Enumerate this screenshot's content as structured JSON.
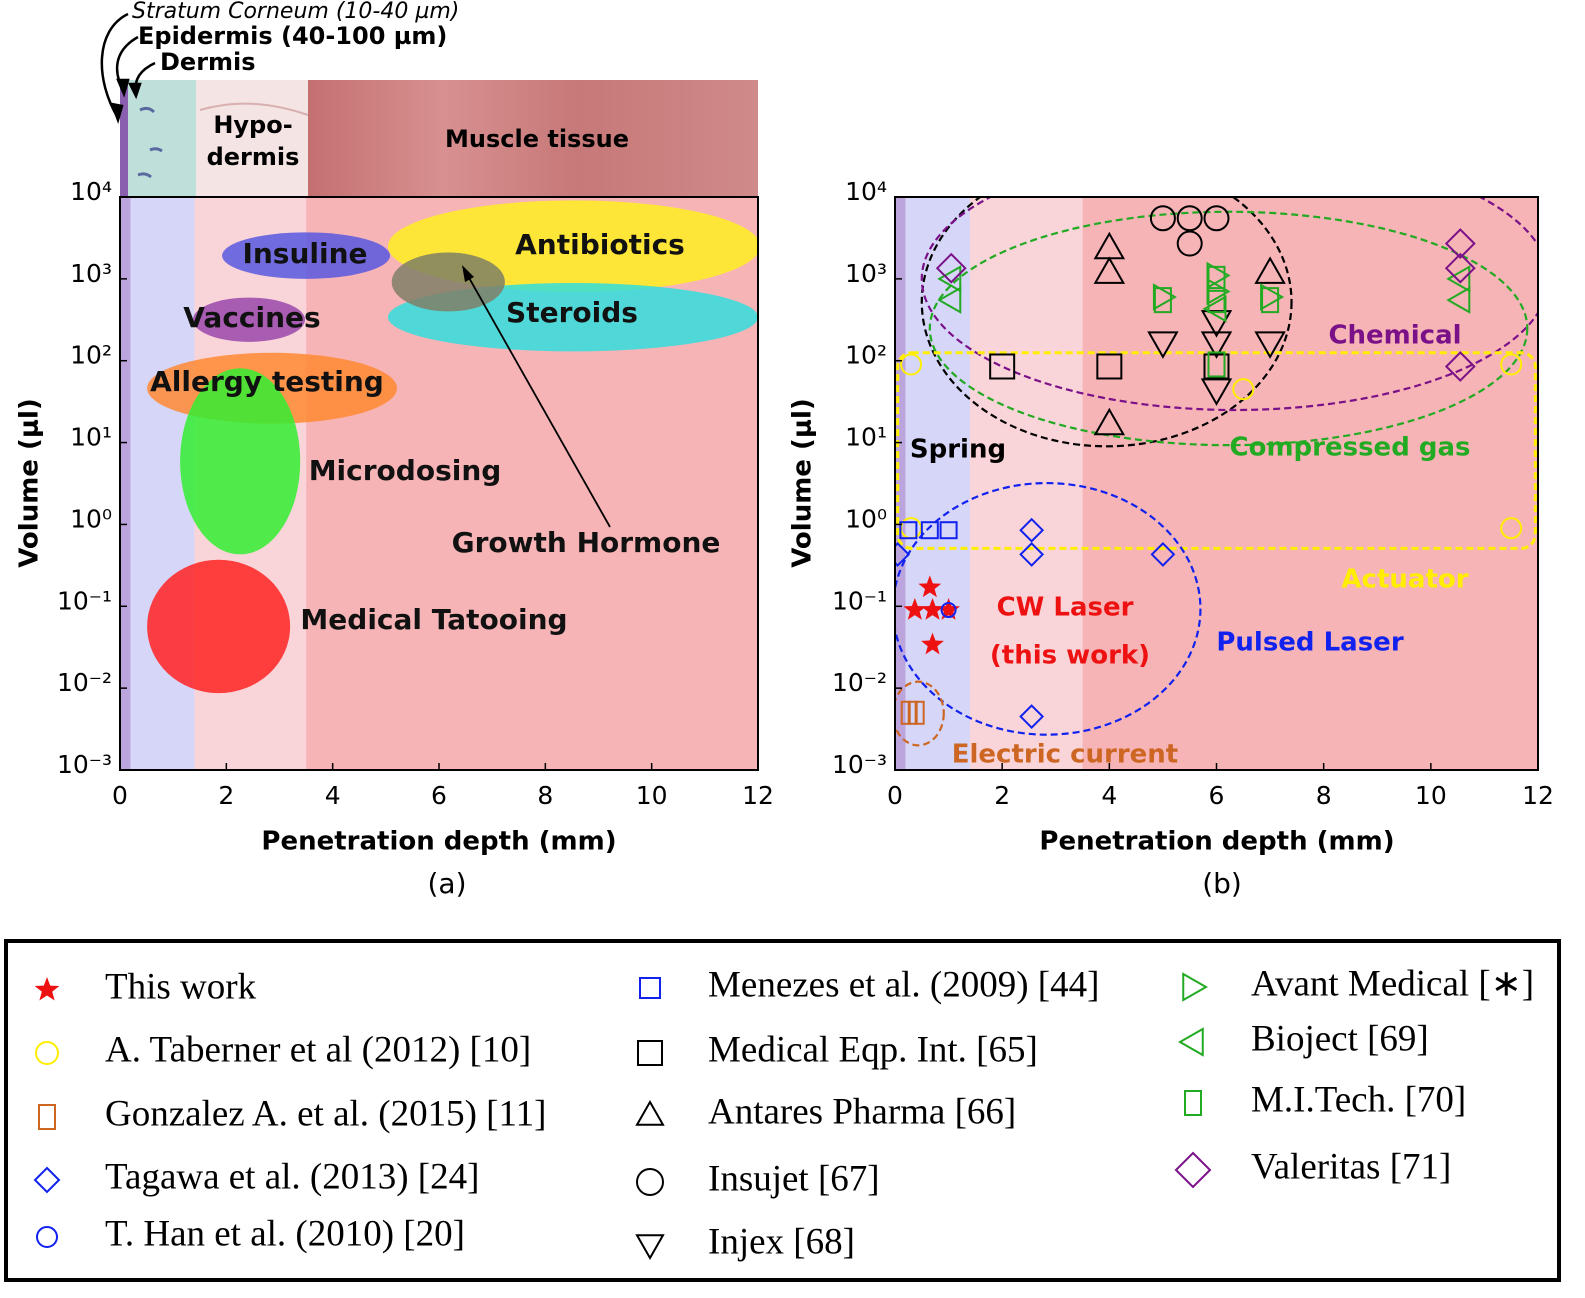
{
  "chart_data": [
    {
      "type": "region",
      "caption": "(a)",
      "xlabel": "Penetration depth (mm)",
      "ylabel": "Volume (μl)",
      "xlim": [
        0,
        12
      ],
      "xticks": [
        0,
        2,
        4,
        6,
        8,
        10,
        12
      ],
      "ylim": [
        0.001,
        10000
      ],
      "yscale": "log",
      "yticks": [
        {
          "value": 0.001,
          "label": "10⁻³"
        },
        {
          "value": 0.01,
          "label": "10⁻²"
        },
        {
          "value": 0.1,
          "label": "10⁻¹"
        },
        {
          "value": 1,
          "label": "10⁰"
        },
        {
          "value": 10,
          "label": "10¹"
        },
        {
          "value": 100,
          "label": "10²"
        },
        {
          "value": 1000,
          "label": "10³"
        },
        {
          "value": 10000,
          "label": "10⁴"
        }
      ],
      "annotations": [
        "Stratum Corneum (10-40 µm)",
        "Epidermis (40-100 µm)",
        "Dermis",
        "Hypo-",
        "dermis",
        "Muscle tissue"
      ],
      "layers": [
        {
          "xlim": [
            0,
            0.2
          ],
          "color": "#bca4dc"
        },
        {
          "xlim": [
            0.2,
            1.4
          ],
          "color": "#d6d6f8"
        },
        {
          "xlim": [
            1.4,
            3.5
          ],
          "color": "#f9d4d8"
        },
        {
          "xlim": [
            3.5,
            12
          ],
          "color": "#f7b4b6"
        }
      ],
      "regions": [
        {
          "name": "Antibiotics",
          "color": "#ffee22",
          "xlim": [
            5.04,
            12.04
          ],
          "ylim": [
            690,
            9100
          ]
        },
        {
          "name": "Steroids",
          "color": "#33dddd",
          "xlim": [
            5.04,
            12
          ],
          "ylim": [
            130,
            890
          ]
        },
        {
          "name": "Growth Hormone",
          "color": "#7f7f66",
          "xlim": [
            5.11,
            7.24
          ],
          "ylim": [
            400,
            2100
          ]
        },
        {
          "name": "Insuline",
          "color": "#5858e0",
          "xlim": [
            1.92,
            5.08
          ],
          "ylim": [
            1000,
            3700
          ]
        },
        {
          "name": "Vaccines",
          "color": "#9a48ac",
          "xlim": [
            1.37,
            3.48
          ],
          "ylim": [
            170,
            590
          ]
        },
        {
          "name": "Allergy testing",
          "color": "#ff8a33",
          "xlim": [
            0.51,
            5.21
          ],
          "ylim": [
            17,
            125
          ]
        },
        {
          "name": "Microdosing",
          "color": "#33ee33",
          "xlim": [
            1.13,
            3.39
          ],
          "ylim": [
            0.43,
            81
          ]
        },
        {
          "name": "Medical Tatooing",
          "color": "#ff2222",
          "xlim": [
            0.51,
            3.2
          ],
          "ylim": [
            0.0087,
            0.37
          ]
        }
      ]
    },
    {
      "type": "scatter",
      "caption": "(b)",
      "xlabel": "Penetration depth (mm)",
      "ylabel": "Volume (μl)",
      "xlim": [
        0,
        12
      ],
      "xticks": [
        0,
        2,
        4,
        6,
        8,
        10,
        12
      ],
      "ylim": [
        0.001,
        10000
      ],
      "yscale": "log",
      "yticks": [
        {
          "value": 0.001,
          "label": "10⁻³"
        },
        {
          "value": 0.01,
          "label": "10⁻²"
        },
        {
          "value": 0.1,
          "label": "10⁻¹"
        },
        {
          "value": 1,
          "label": "10⁰"
        },
        {
          "value": 10,
          "label": "10¹"
        },
        {
          "value": 100,
          "label": "10²"
        },
        {
          "value": 1000,
          "label": "10³"
        },
        {
          "value": 10000,
          "label": "10⁴"
        }
      ],
      "legend": "below",
      "annotations": [
        "CW Laser",
        "(this work)"
      ],
      "layers": [
        {
          "xlim": [
            0,
            0.2
          ],
          "color": "#bca4dc"
        },
        {
          "xlim": [
            0.2,
            1.4
          ],
          "color": "#d6d6f8"
        },
        {
          "xlim": [
            1.4,
            3.5
          ],
          "color": "#f9d4d8"
        },
        {
          "xlim": [
            3.5,
            12
          ],
          "color": "#f7b4b6"
        }
      ],
      "groups": [
        {
          "name": "Spring",
          "color": "#000000",
          "shape": "ellipse",
          "xlim": [
            0.5,
            7.4
          ],
          "ylim": [
            9,
            30000
          ]
        },
        {
          "name": "Chemical",
          "color": "#7a1188",
          "shape": "ellipse",
          "xlim": [
            0.5,
            12.2
          ],
          "ylim": [
            25,
            40000
          ]
        },
        {
          "name": "Compressed gas",
          "color": "#22aa22",
          "shape": "ellipse",
          "xlim": [
            0.65,
            11.8
          ],
          "ylim": [
            9.3,
            6600
          ]
        },
        {
          "name": "Actuator",
          "color": "#ffee00",
          "shape": "rounded-rect",
          "xlim": [
            0.05,
            11.95
          ],
          "ylim": [
            0.51,
            125
          ]
        },
        {
          "name": "Pulsed Laser",
          "color": "#1122ee",
          "shape": "ellipse",
          "xlim": [
            -0.04,
            5.7
          ],
          "ylim": [
            0.0027,
            3.2
          ]
        },
        {
          "name": "Electric current",
          "color": "#cc6622",
          "shape": "ellipse",
          "xlim": [
            -0.04,
            0.91
          ],
          "ylim": [
            0.002,
            0.012
          ]
        }
      ],
      "series": [
        {
          "name": "This work",
          "color": "#ee1111",
          "marker": "star",
          "x": [
            0.65,
            0.37,
            0.7,
            1.0,
            0.7
          ],
          "values": [
            0.17,
            0.09,
            0.09,
            0.09,
            0.034
          ]
        },
        {
          "name": "A. Taberner et al (2012) [10]",
          "color": "#ffee00",
          "marker": "circle",
          "x": [
            0.3,
            0.3,
            6.5,
            11.5,
            11.5
          ],
          "values": [
            90,
            0.9,
            45,
            90,
            0.9
          ]
        },
        {
          "name": "Gonzalez A. et al. (2015) [11]",
          "color": "#cc6622",
          "marker": "bar",
          "x": [
            0.2,
            0.33,
            0.46
          ],
          "values": [
            0.005,
            0.005,
            0.005
          ]
        },
        {
          "name": "Tagawa et al. (2013) [24]",
          "color": "#1122ee",
          "marker": "diamond",
          "x": [
            0.05,
            2.55,
            2.55,
            5,
            2.55
          ],
          "values": [
            0.43,
            0.85,
            0.43,
            0.43,
            0.0045
          ]
        },
        {
          "name": "T. Han et al. (2010) [20]",
          "color": "#1122ee",
          "marker": "circle",
          "x": [
            1.0
          ],
          "values": [
            0.09
          ]
        },
        {
          "name": "Menezes et al. (2009) [44]",
          "color": "#1122ee",
          "marker": "square",
          "x": [
            0.25,
            0.65,
            1.0
          ],
          "values": [
            0.85,
            0.85,
            0.85
          ]
        },
        {
          "name": "Medical Eqp. Int. [65]",
          "color": "#000000",
          "marker": "square",
          "x": [
            2,
            4,
            6
          ],
          "values": [
            85,
            85,
            85
          ]
        },
        {
          "name": "Antares Pharma [66]",
          "color": "#000000",
          "marker": "triangle-up",
          "x": [
            4,
            4,
            4,
            7
          ],
          "values": [
            2400,
            1200,
            17,
            1200
          ]
        },
        {
          "name": "Insujet [67]",
          "color": "#000000",
          "marker": "circle",
          "x": [
            5,
            5.5,
            6,
            5.5
          ],
          "values": [
            5500,
            5500,
            5500,
            2700
          ]
        },
        {
          "name": "Injex [68]",
          "color": "#000000",
          "marker": "triangle-down",
          "x": [
            5,
            6,
            6,
            6,
            7
          ],
          "values": [
            165,
            300,
            165,
            44,
            165
          ]
        },
        {
          "name": "Avant Medical [∗]",
          "color": "#22aa22",
          "marker": "triangle-right",
          "x": [
            5,
            6,
            6,
            7
          ],
          "values": [
            600,
            1100,
            700,
            600
          ]
        },
        {
          "name": "Bioject [69]",
          "color": "#22aa22",
          "marker": "triangle-left",
          "x": [
            1.05,
            1.05,
            6,
            10.55,
            10.55
          ],
          "values": [
            1000,
            550,
            430,
            1000,
            550
          ]
        },
        {
          "name": "M.I.Tech. [70]",
          "color": "#22aa22",
          "marker": "tall-square",
          "x": [
            5,
            6,
            6,
            7,
            6
          ],
          "values": [
            550,
            1000,
            550,
            550,
            90
          ]
        },
        {
          "name": "Valeritas [71]",
          "color": "#7a1188",
          "marker": "diamond",
          "x": [
            1.05,
            10.55,
            10.55,
            10.55
          ],
          "values": [
            1350,
            2700,
            1350,
            85
          ]
        }
      ]
    }
  ]
}
